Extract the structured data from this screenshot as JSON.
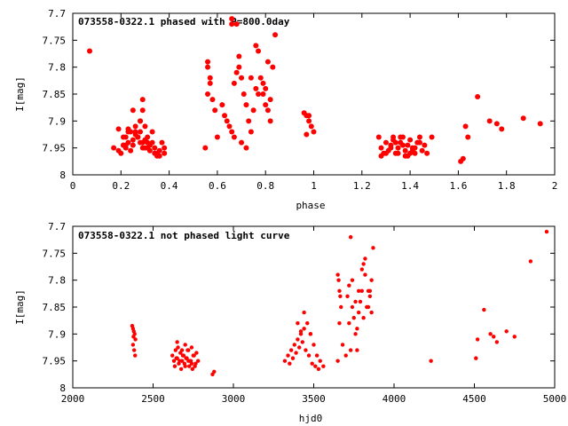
{
  "chart_data": [
    {
      "type": "scatter",
      "title": "073558-0322.1 phased with P=800.0day",
      "xlabel": "phase",
      "ylabel": "I[mag]",
      "xlim": [
        0,
        2
      ],
      "ylim": [
        8,
        7.7
      ],
      "y_inverted": true,
      "xticks": [
        "0",
        "0.2",
        "0.4",
        "0.6",
        "0.8",
        "1",
        "1.2",
        "1.4",
        "1.6",
        "1.8",
        "2"
      ],
      "yticks": [
        "7.7",
        "7.75",
        "7.8",
        "7.85",
        "7.9",
        "7.95",
        "8"
      ],
      "grid": false,
      "marker_color": "#ff0000",
      "series": [
        {
          "x": [
            0.07,
            0.17,
            0.19,
            0.21,
            0.22,
            0.23,
            0.24,
            0.25,
            0.26,
            0.27,
            0.28,
            0.29,
            0.3,
            0.31,
            0.32,
            0.33,
            0.35,
            0.36,
            0.38,
            0.21,
            0.22,
            0.23,
            0.25,
            0.26,
            0.27,
            0.28,
            0.29,
            0.3,
            0.31,
            0.33,
            0.34,
            0.35,
            0.37,
            0.38,
            0.24,
            0.27,
            0.28,
            0.29,
            0.3,
            0.32,
            0.2,
            0.22,
            0.26,
            0.28,
            0.31,
            0.34,
            0.36,
            0.29,
            0.25,
            0.23,
            0.55,
            0.56,
            0.56,
            0.57,
            0.57,
            0.56,
            0.58,
            0.59,
            0.6,
            0.62,
            0.63,
            0.64,
            0.65,
            0.66,
            0.67,
            0.68,
            0.69,
            0.69,
            0.7,
            0.71,
            0.72,
            0.73,
            0.67,
            0.7,
            0.66,
            0.72,
            0.74,
            0.75,
            0.76,
            0.77,
            0.78,
            0.79,
            0.8,
            0.81,
            0.82,
            0.83,
            0.84,
            0.77,
            0.8,
            0.81,
            0.82,
            0.79,
            0.74,
            0.76,
            0.66,
            0.68,
            0.19,
            0.21,
            0.96,
            0.97,
            0.98,
            0.99,
            1.0,
            0.97,
            0.98,
            1.27,
            1.28,
            1.29,
            1.3,
            1.31,
            1.32,
            1.33,
            1.34,
            1.35,
            1.36,
            1.37,
            1.38,
            1.39,
            1.4,
            1.41,
            1.42,
            1.43,
            1.44,
            1.45,
            1.46,
            1.47,
            1.49,
            1.28,
            1.3,
            1.32,
            1.34,
            1.36,
            1.38,
            1.4,
            1.42,
            1.44,
            1.33,
            1.37,
            1.41,
            1.35,
            1.39,
            1.61,
            1.62,
            1.63,
            1.64,
            1.68,
            1.73,
            1.76,
            1.78,
            1.87,
            1.94
          ],
          "y": [
            7.77,
            7.95,
            7.955,
            7.93,
            7.95,
            7.94,
            7.92,
            7.935,
            7.91,
            7.93,
            7.94,
            7.95,
            7.935,
            7.95,
            7.955,
            7.94,
            7.96,
            7.965,
            7.95,
            7.945,
            7.93,
            7.92,
            7.945,
            7.92,
            7.93,
            7.9,
            7.88,
            7.95,
            7.94,
            7.92,
            7.96,
            7.965,
            7.94,
            7.96,
            7.955,
            7.93,
            7.92,
            7.94,
            7.91,
            7.945,
            7.96,
            7.945,
            7.925,
            7.9,
            7.93,
            7.95,
            7.955,
            7.86,
            7.88,
            7.915,
            7.95,
            7.79,
            7.8,
            7.82,
            7.83,
            7.85,
            7.86,
            7.88,
            7.93,
            7.87,
            7.89,
            7.9,
            7.91,
            7.92,
            7.83,
            7.81,
            7.78,
            7.8,
            7.82,
            7.85,
            7.87,
            7.9,
            7.93,
            7.94,
            7.72,
            7.95,
            7.92,
            7.88,
            7.76,
            7.77,
            7.82,
            7.83,
            7.84,
            7.79,
            7.86,
            7.8,
            7.74,
            7.85,
            7.87,
            7.88,
            7.9,
            7.85,
            7.82,
            7.84,
            7.71,
            7.72,
            7.915,
            7.945,
            7.885,
            7.89,
            7.9,
            7.91,
            7.92,
            7.925,
            7.89,
            7.93,
            7.95,
            7.96,
            7.94,
            7.955,
            7.945,
            7.935,
            7.96,
            7.95,
            7.94,
            7.93,
            7.955,
            7.945,
            7.935,
            7.95,
            7.96,
            7.94,
            7.93,
            7.955,
            7.945,
            7.96,
            7.93,
            7.965,
            7.96,
            7.95,
            7.94,
            7.93,
            7.965,
            7.96,
            7.95,
            7.94,
            7.93,
            7.945,
            7.955,
            7.96,
            7.965,
            7.975,
            7.97,
            7.91,
            7.93,
            7.855,
            7.9,
            7.905,
            7.915,
            7.895,
            7.905
          ]
        }
      ]
    },
    {
      "type": "scatter",
      "title": "073558-0322.1 not phased light curve",
      "xlabel": "hjd0",
      "ylabel": "I[mag]",
      "xlim": [
        2000,
        5000
      ],
      "ylim": [
        8,
        7.7
      ],
      "y_inverted": true,
      "xticks": [
        "2000",
        "2500",
        "3000",
        "3500",
        "4000",
        "4500",
        "5000"
      ],
      "yticks": [
        "7.7",
        "7.75",
        "7.8",
        "7.85",
        "7.9",
        "7.95",
        "8"
      ],
      "grid": false,
      "marker_color": "#ff0000",
      "series": [
        {
          "x": [
            2370,
            2375,
            2380,
            2385,
            2390,
            2375,
            2382,
            2388,
            2378,
            2620,
            2630,
            2640,
            2650,
            2660,
            2670,
            2680,
            2690,
            2700,
            2710,
            2720,
            2730,
            2740,
            2750,
            2760,
            2770,
            2780,
            2635,
            2645,
            2655,
            2665,
            2675,
            2685,
            2695,
            2705,
            2715,
            2725,
            2735,
            2745,
            2755,
            2765,
            2650,
            2700,
            2740,
            2680,
            2720,
            2870,
            2880,
            3320,
            3340,
            3360,
            3380,
            3400,
            3420,
            3440,
            3460,
            3480,
            3500,
            3520,
            3540,
            3560,
            3350,
            3370,
            3390,
            3410,
            3430,
            3450,
            3470,
            3490,
            3510,
            3530,
            3400,
            3440,
            3480,
            3420,
            3650,
            3655,
            3660,
            3665,
            3670,
            3660,
            3650,
            3680,
            3700,
            3710,
            3720,
            3730,
            3740,
            3750,
            3760,
            3770,
            3780,
            3790,
            3800,
            3810,
            3820,
            3830,
            3840,
            3850,
            3860,
            3870,
            3720,
            3740,
            3760,
            3780,
            3800,
            3820,
            3840,
            3860,
            3730,
            3770,
            3810,
            3850,
            4230,
            4510,
            4520,
            4560,
            4600,
            4620,
            4640,
            4700,
            4750,
            4850,
            4950
          ],
          "y": [
            7.885,
            7.89,
            7.895,
            7.9,
            7.91,
            7.92,
            7.93,
            7.94,
            7.905,
            7.94,
            7.95,
            7.93,
            7.945,
            7.955,
            7.935,
            7.95,
            7.94,
            7.96,
            7.945,
            7.93,
            7.95,
            7.955,
            7.94,
            7.96,
            7.935,
            7.95,
            7.96,
            7.945,
            7.925,
            7.95,
            7.965,
            7.94,
            7.955,
            7.945,
            7.93,
            7.96,
            7.95,
            7.965,
            7.94,
            7.955,
            7.915,
            7.92,
            7.925,
            7.93,
            7.95,
            7.975,
            7.97,
            7.95,
            7.94,
            7.93,
            7.92,
            7.91,
            7.9,
            7.89,
            7.88,
            7.9,
            7.92,
            7.94,
            7.95,
            7.96,
            7.955,
            7.945,
            7.935,
            7.925,
            7.915,
            7.93,
            7.94,
            7.955,
            7.96,
            7.965,
            7.88,
            7.86,
            7.9,
            7.895,
            7.79,
            7.8,
            7.82,
            7.83,
            7.85,
            7.88,
            7.95,
            7.92,
            7.94,
            7.83,
            7.81,
            7.72,
            7.85,
            7.87,
            7.9,
            7.93,
            7.82,
            7.84,
            7.78,
            7.77,
            7.79,
            7.85,
            7.82,
            7.83,
            7.86,
            7.74,
            7.88,
            7.8,
            7.84,
            7.86,
            7.82,
            7.76,
            7.85,
            7.8,
            7.93,
            7.89,
            7.87,
            7.82,
            7.95,
            7.945,
            7.91,
            7.855,
            7.9,
            7.905,
            7.915,
            7.895,
            7.905,
            7.765,
            7.71
          ]
        }
      ]
    }
  ]
}
